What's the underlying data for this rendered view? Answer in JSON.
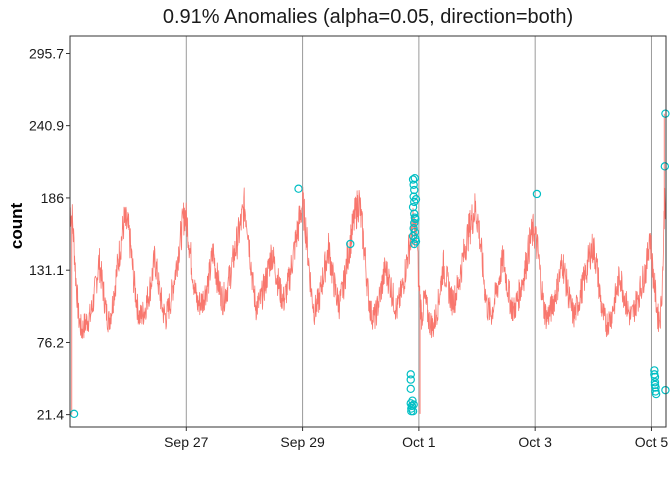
{
  "chart_data": {
    "type": "line",
    "title": "0.91% Anomalies (alpha=0.05, direction=both)",
    "xlabel": "",
    "ylabel": "count",
    "x_unit": "days",
    "x_ticks": [
      {
        "value": 2,
        "label": "Sep 27"
      },
      {
        "value": 4,
        "label": "Sep 29"
      },
      {
        "value": 6,
        "label": "Oct  1"
      },
      {
        "value": 8,
        "label": "Oct  3"
      },
      {
        "value": 10,
        "label": "Oct  5"
      }
    ],
    "xlim": [
      0,
      10.25
    ],
    "ylim": [
      12,
      309
    ],
    "y_ticks": [
      21.4,
      76.2,
      131.1,
      186,
      240.9,
      295.7
    ],
    "grid": {
      "vertical": true,
      "horizontal": false
    },
    "series": [
      {
        "color": "#F8766D",
        "points": [
          [
            0.0,
            178
          ],
          [
            0.04,
            170
          ],
          [
            0.07,
            150
          ],
          [
            0.1,
            125
          ],
          [
            0.15,
            95
          ],
          [
            0.2,
            85
          ],
          [
            0.28,
            92
          ],
          [
            0.35,
            96
          ],
          [
            0.42,
            112
          ],
          [
            0.5,
            138
          ],
          [
            0.56,
            120
          ],
          [
            0.62,
            100
          ],
          [
            0.67,
            92
          ],
          [
            0.73,
            105
          ],
          [
            0.8,
            128
          ],
          [
            0.87,
            150
          ],
          [
            0.93,
            168
          ],
          [
            1.0,
            163
          ],
          [
            1.05,
            145
          ],
          [
            1.1,
            122
          ],
          [
            1.16,
            103
          ],
          [
            1.2,
            95
          ],
          [
            1.28,
            100
          ],
          [
            1.38,
            118
          ],
          [
            1.46,
            140
          ],
          [
            1.53,
            118
          ],
          [
            1.6,
            100
          ],
          [
            1.65,
            95
          ],
          [
            1.73,
            108
          ],
          [
            1.82,
            132
          ],
          [
            1.9,
            155
          ],
          [
            1.97,
            175
          ],
          [
            2.02,
            165
          ],
          [
            2.08,
            140
          ],
          [
            2.15,
            115
          ],
          [
            2.2,
            105
          ],
          [
            2.28,
            108
          ],
          [
            2.38,
            122
          ],
          [
            2.46,
            145
          ],
          [
            2.52,
            128
          ],
          [
            2.58,
            115
          ],
          [
            2.63,
            108
          ],
          [
            2.72,
            120
          ],
          [
            2.82,
            142
          ],
          [
            2.92,
            162
          ],
          [
            3.0,
            180
          ],
          [
            3.05,
            168
          ],
          [
            3.1,
            142
          ],
          [
            3.15,
            118
          ],
          [
            3.2,
            103
          ],
          [
            3.28,
            108
          ],
          [
            3.38,
            125
          ],
          [
            3.47,
            145
          ],
          [
            3.55,
            128
          ],
          [
            3.62,
            114
          ],
          [
            3.68,
            108
          ],
          [
            3.76,
            122
          ],
          [
            3.85,
            145
          ],
          [
            3.95,
            170
          ],
          [
            4.0,
            182
          ],
          [
            4.05,
            165
          ],
          [
            4.1,
            140
          ],
          [
            4.15,
            115
          ],
          [
            4.2,
            100
          ],
          [
            4.28,
            108
          ],
          [
            4.37,
            130
          ],
          [
            4.45,
            148
          ],
          [
            4.52,
            126
          ],
          [
            4.58,
            112
          ],
          [
            4.63,
            105
          ],
          [
            4.7,
            118
          ],
          [
            4.8,
            148
          ],
          [
            4.9,
            172
          ],
          [
            4.97,
            184
          ],
          [
            5.02,
            165
          ],
          [
            5.08,
            138
          ],
          [
            5.13,
            112
          ],
          [
            5.18,
            98
          ],
          [
            5.25,
            95
          ],
          [
            5.33,
            112
          ],
          [
            5.42,
            132
          ],
          [
            5.5,
            122
          ],
          [
            5.56,
            110
          ],
          [
            5.62,
            100
          ],
          [
            5.72,
            118
          ],
          [
            5.8,
            140
          ],
          [
            5.9,
            165
          ],
          [
            5.96,
            158
          ],
          [
            6.0,
            120
          ],
          [
            6.05,
            95
          ],
          [
            6.1,
            110
          ],
          [
            6.18,
            92
          ],
          [
            6.25,
            88
          ],
          [
            6.33,
            105
          ],
          [
            6.42,
            135
          ],
          [
            6.5,
            120
          ],
          [
            6.56,
            108
          ],
          [
            6.62,
            110
          ],
          [
            6.7,
            125
          ],
          [
            6.8,
            150
          ],
          [
            6.9,
            168
          ],
          [
            6.97,
            178
          ],
          [
            7.02,
            168
          ],
          [
            7.08,
            142
          ],
          [
            7.13,
            118
          ],
          [
            7.18,
            102
          ],
          [
            7.25,
            98
          ],
          [
            7.35,
            118
          ],
          [
            7.45,
            140
          ],
          [
            7.52,
            120
          ],
          [
            7.58,
            106
          ],
          [
            7.63,
            100
          ],
          [
            7.72,
            112
          ],
          [
            7.82,
            130
          ],
          [
            7.92,
            155
          ],
          [
            7.98,
            162
          ],
          [
            8.05,
            145
          ],
          [
            8.1,
            122
          ],
          [
            8.15,
            102
          ],
          [
            8.2,
            95
          ],
          [
            8.28,
            102
          ],
          [
            8.38,
            118
          ],
          [
            8.47,
            138
          ],
          [
            8.55,
            118
          ],
          [
            8.62,
            102
          ],
          [
            8.67,
            96
          ],
          [
            8.75,
            108
          ],
          [
            8.85,
            125
          ],
          [
            8.95,
            145
          ],
          [
            9.0,
            148
          ],
          [
            9.05,
            138
          ],
          [
            9.1,
            118
          ],
          [
            9.15,
            100
          ],
          [
            9.22,
            90
          ],
          [
            9.3,
            95
          ],
          [
            9.38,
            110
          ],
          [
            9.46,
            128
          ],
          [
            9.53,
            112
          ],
          [
            9.6,
            100
          ],
          [
            9.65,
            95
          ],
          [
            9.72,
            104
          ],
          [
            9.82,
            118
          ],
          [
            9.92,
            135
          ],
          [
            9.97,
            160
          ],
          [
            10.02,
            132
          ],
          [
            10.07,
            112
          ],
          [
            10.11,
            95
          ],
          [
            10.15,
            95
          ],
          [
            10.18,
            115
          ],
          [
            10.2,
            140
          ],
          [
            10.23,
            190
          ],
          [
            10.25,
            178
          ]
        ]
      }
    ],
    "spikes": [
      {
        "x": 0.03,
        "y": 21.5
      },
      {
        "x": 6.02,
        "y": 22
      },
      {
        "x": 10.22,
        "y": 250
      }
    ],
    "anomalies": {
      "color": "#00BFC4",
      "points": [
        [
          0.07,
          22
        ],
        [
          3.93,
          193
        ],
        [
          4.82,
          151
        ],
        [
          8.03,
          189
        ],
        [
          5.86,
          41
        ],
        [
          5.86,
          48
        ],
        [
          5.86,
          52
        ],
        [
          5.86,
          30
        ],
        [
          5.87,
          26
        ],
        [
          5.87,
          24
        ],
        [
          5.88,
          28
        ],
        [
          5.89,
          32
        ],
        [
          5.9,
          24
        ],
        [
          5.91,
          29
        ],
        [
          5.9,
          200
        ],
        [
          5.91,
          196
        ],
        [
          5.92,
          192
        ],
        [
          5.91,
          187
        ],
        [
          5.92,
          183
        ],
        [
          5.9,
          179
        ],
        [
          5.92,
          174
        ],
        [
          5.93,
          171
        ],
        [
          5.92,
          167
        ],
        [
          5.91,
          163
        ],
        [
          5.93,
          160
        ],
        [
          5.94,
          155
        ],
        [
          5.92,
          151
        ],
        [
          5.95,
          153
        ],
        [
          5.94,
          170
        ],
        [
          5.95,
          185
        ],
        [
          5.93,
          201
        ],
        [
          5.9,
          157
        ],
        [
          10.05,
          55
        ],
        [
          10.06,
          50
        ],
        [
          10.06,
          46
        ],
        [
          10.07,
          42
        ],
        [
          10.07,
          39
        ],
        [
          10.08,
          37
        ],
        [
          10.06,
          44
        ],
        [
          10.05,
          52
        ],
        [
          10.24,
          250
        ],
        [
          10.23,
          210
        ],
        [
          10.24,
          40
        ]
      ]
    }
  }
}
